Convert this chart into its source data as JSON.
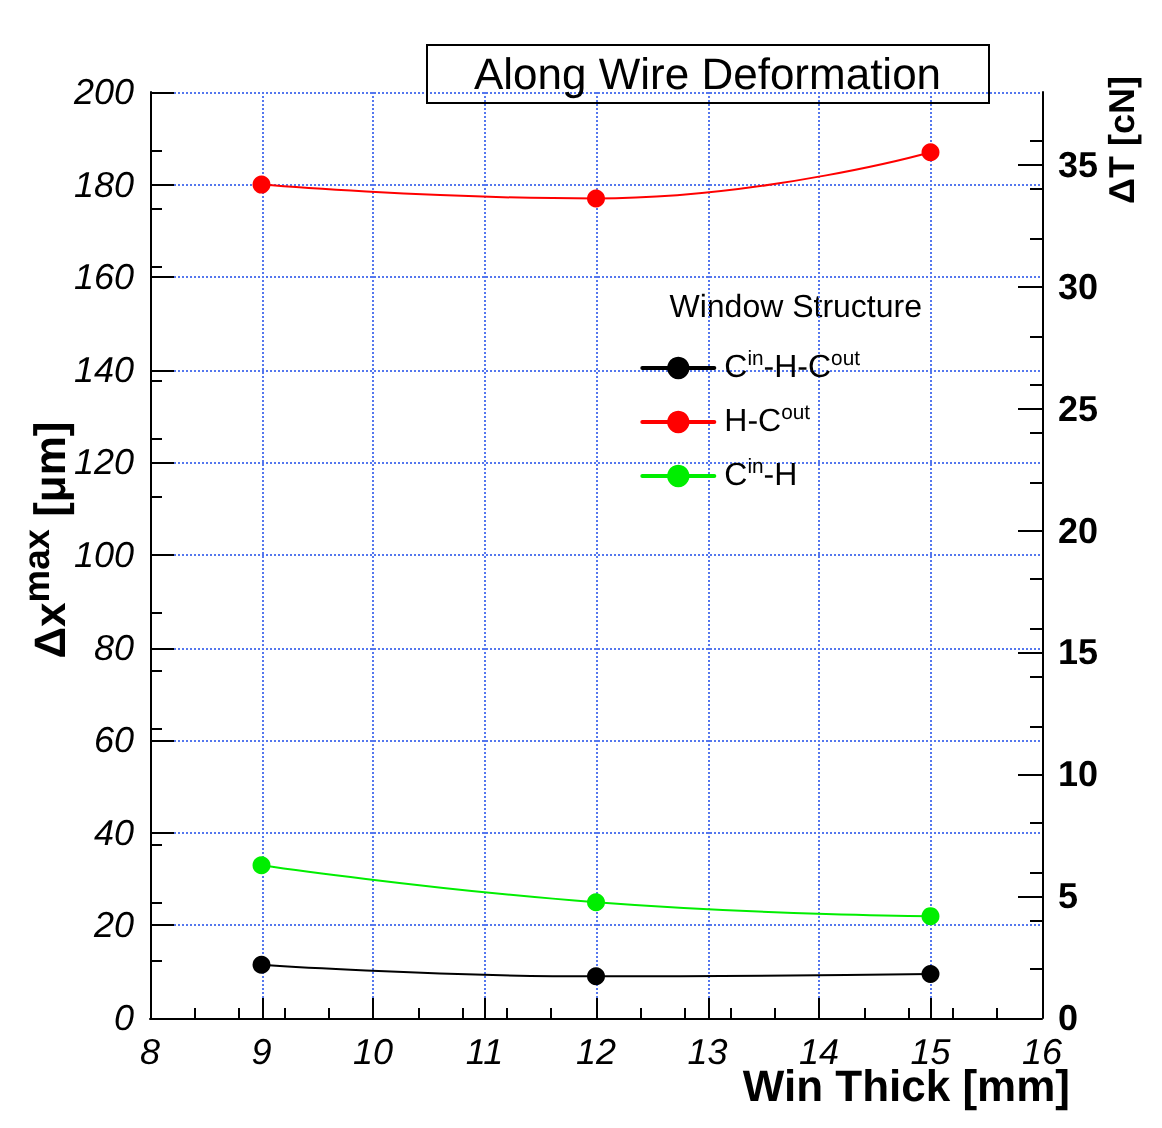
{
  "chart_data": {
    "type": "line",
    "title": "Along Wire Deformation",
    "xlabel": "Win Thick [mm]",
    "ylabel": "Δx$^{max}$ [μm]",
    "y2label": "ΔT [cN]",
    "legend_title": "Window Structure",
    "x": [
      9,
      12,
      15
    ],
    "series": [
      {
        "name": "C$^{in}$-H-C$^{out}$",
        "color": "#000000",
        "values": [
          11.5,
          9,
          9.5
        ]
      },
      {
        "name": "H-C$^{out}$",
        "color": "#ff0000",
        "values": [
          180,
          177,
          187
        ]
      },
      {
        "name": "C$^{in}$-H",
        "color": "#00ee00",
        "values": [
          33,
          25,
          22
        ]
      }
    ],
    "xlim": [
      8,
      16
    ],
    "xticks": [
      8,
      9,
      10,
      11,
      12,
      13,
      14,
      15,
      16
    ],
    "ylim": [
      0,
      200
    ],
    "yticks": [
      0,
      20,
      40,
      60,
      80,
      100,
      120,
      140,
      160,
      180,
      200
    ],
    "y2lim": [
      0,
      38
    ],
    "y2ticks": [
      0,
      5,
      10,
      15,
      20,
      25,
      30,
      35
    ],
    "grid": true,
    "legend": "right",
    "marker": "circle",
    "line_style": "solid"
  }
}
